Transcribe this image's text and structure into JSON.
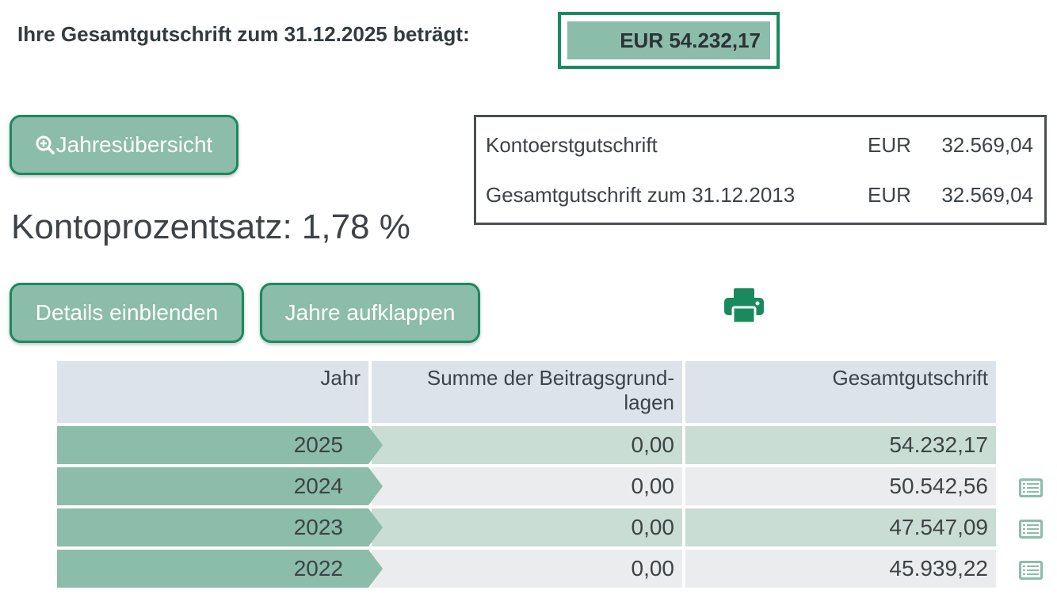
{
  "header": {
    "total_label": "Ihre Gesamtgutschrift zum 31.12.2025 beträgt:",
    "total_value": "EUR 54.232,17"
  },
  "buttons": {
    "jahresuebersicht": "Jahresübersicht",
    "details": "Details einblenden",
    "jahre": "Jahre aufklappen"
  },
  "rate_text": "Kontoprozentsatz: 1,78 %",
  "summary": {
    "rows": [
      {
        "label": "Kontoerstgutschrift",
        "currency": "EUR",
        "amount": "32.569,04"
      },
      {
        "label": "Gesamtgutschrift zum 31.12.2013",
        "currency": "EUR",
        "amount": "32.569,04"
      }
    ]
  },
  "table": {
    "headers": {
      "year": "Jahr",
      "sum_line1": "Summe der Beitragsgrund-",
      "sum_line2": "lagen",
      "total": "Gesamtgutschrift"
    },
    "rows": [
      {
        "year": "2025",
        "sum": "0,00",
        "total": "54.232,17"
      },
      {
        "year": "2024",
        "sum": "0,00",
        "total": "50.542,56"
      },
      {
        "year": "2023",
        "sum": "0,00",
        "total": "47.547,09"
      },
      {
        "year": "2022",
        "sum": "0,00",
        "total": "45.939,22"
      }
    ]
  },
  "colors": {
    "accent_border": "#1a8a5e",
    "accent_fill": "#8cbcaa",
    "row_shade": "#c9ddd4",
    "header_bg": "#dce3eb"
  },
  "icons": [
    "zoom-in-icon",
    "printer-icon",
    "list-details-icon"
  ]
}
